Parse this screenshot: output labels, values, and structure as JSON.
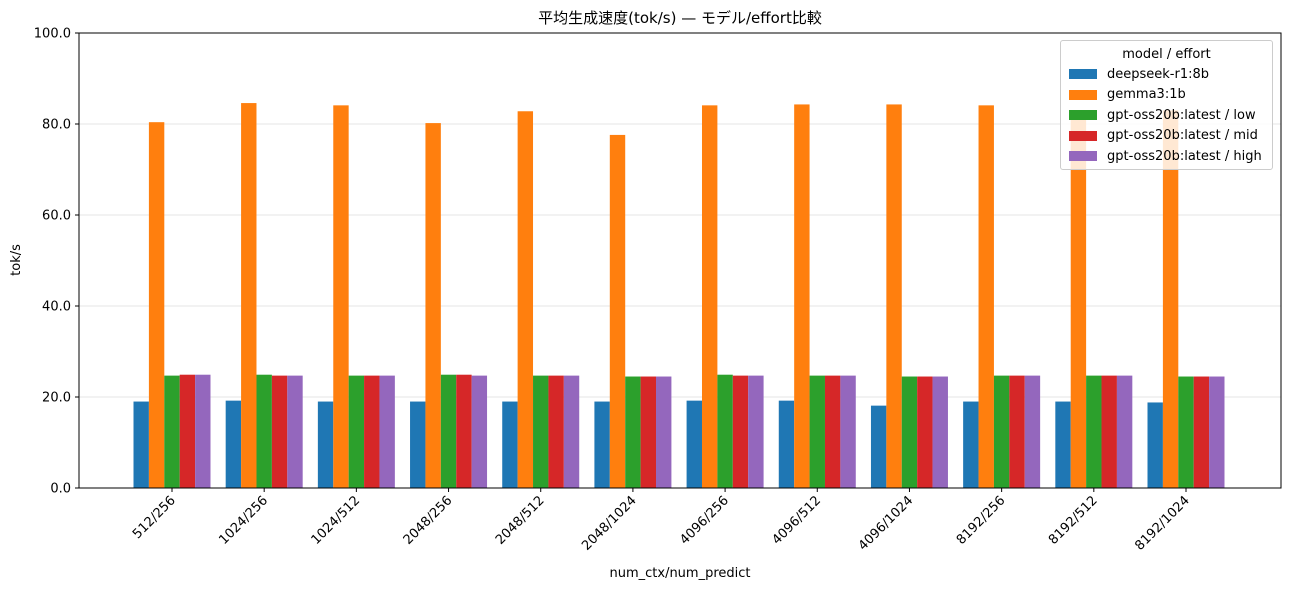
{
  "chart_data": {
    "type": "bar",
    "title": "平均生成速度(tok/s) — モデル/effort比較",
    "xlabel": "num_ctx/num_predict",
    "ylabel": "tok/s",
    "ylim": [
      0,
      100
    ],
    "yticks": [
      "0.0",
      "20.0",
      "40.0",
      "60.0",
      "80.0",
      "100.0"
    ],
    "grid": "horizontal",
    "legend_title": "model / effort",
    "legend_position": "top-right",
    "categories": [
      "512/256",
      "1024/256",
      "1024/512",
      "2048/256",
      "2048/512",
      "2048/1024",
      "4096/256",
      "4096/512",
      "4096/1024",
      "8192/256",
      "8192/512",
      "8192/1024"
    ],
    "series": [
      {
        "name": "deepseek-r1:8b",
        "color": "#1f77b4",
        "values": [
          19.0,
          19.2,
          19.0,
          19.0,
          19.0,
          19.0,
          19.2,
          19.2,
          18.1,
          19.0,
          19.0,
          18.8
        ]
      },
      {
        "name": "gemma3:1b",
        "color": "#ff7f0e",
        "values": [
          80.4,
          84.6,
          84.1,
          80.2,
          82.8,
          77.6,
          84.1,
          84.3,
          84.3,
          84.1,
          82.0,
          83.0
        ]
      },
      {
        "name": "gpt-oss20b:latest / low",
        "color": "#2ca02c",
        "values": [
          24.7,
          24.9,
          24.7,
          24.9,
          24.7,
          24.5,
          24.9,
          24.7,
          24.5,
          24.7,
          24.7,
          24.5
        ]
      },
      {
        "name": "gpt-oss20b:latest / mid",
        "color": "#d62728",
        "values": [
          24.9,
          24.7,
          24.7,
          24.9,
          24.7,
          24.5,
          24.7,
          24.7,
          24.5,
          24.7,
          24.7,
          24.5
        ]
      },
      {
        "name": "gpt-oss20b:latest / high",
        "color": "#9467bd",
        "values": [
          24.9,
          24.7,
          24.7,
          24.7,
          24.7,
          24.5,
          24.7,
          24.7,
          24.5,
          24.7,
          24.7,
          24.5
        ]
      }
    ]
  }
}
